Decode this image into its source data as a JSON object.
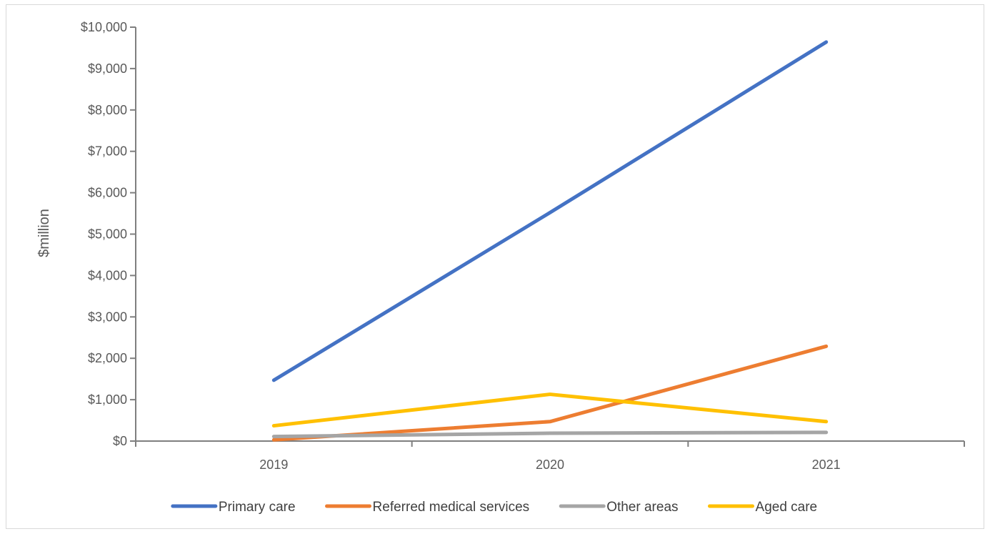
{
  "chart_data": {
    "type": "line",
    "title": "",
    "xlabel": "",
    "ylabel": "$million",
    "categories": [
      "2019",
      "2020",
      "2021"
    ],
    "ylim": [
      0,
      10000
    ],
    "y_ticks": [
      "$0",
      "$1,000",
      "$2,000",
      "$3,000",
      "$4,000",
      "$5,000",
      "$6,000",
      "$7,000",
      "$8,000",
      "$9,000",
      "$10,000"
    ],
    "y_tick_values": [
      0,
      1000,
      2000,
      3000,
      4000,
      5000,
      6000,
      7000,
      8000,
      9000,
      10000
    ],
    "grid": false,
    "legend_position": "bottom",
    "series": [
      {
        "name": "Primary care",
        "color": "#4472c4",
        "values": [
          1470,
          5520,
          9640
        ]
      },
      {
        "name": "Referred medical services",
        "color": "#ed7d31",
        "values": [
          30,
          470,
          2290
        ]
      },
      {
        "name": "Other areas",
        "color": "#a5a5a5",
        "values": [
          110,
          190,
          210
        ]
      },
      {
        "name": "Aged care",
        "color": "#ffc000",
        "values": [
          370,
          1130,
          470
        ]
      }
    ]
  }
}
